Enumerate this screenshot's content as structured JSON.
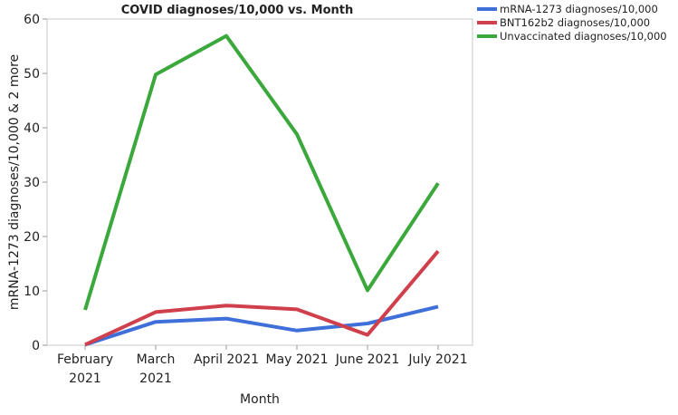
{
  "chart_data": {
    "type": "line",
    "title": "COVID diagnoses/10,000 vs. Month",
    "xlabel": "Month",
    "ylabel": "mRNA-1273 diagnoses/10,000 & 2 more",
    "categories": [
      [
        "February",
        "2021"
      ],
      [
        "March",
        "2021"
      ],
      [
        "April 2021"
      ],
      [
        "May 2021"
      ],
      [
        "June 2021"
      ],
      [
        "July 2021"
      ]
    ],
    "ylim": [
      0,
      60
    ],
    "yticks": [
      "0",
      "10",
      "20",
      "30",
      "40",
      "50",
      "60"
    ],
    "grid": false,
    "legend_position": "top-right",
    "series": [
      {
        "name": "mRNA-1273 diagnoses/10,000",
        "color": "#3f6fd8",
        "values": [
          0.1,
          4.3,
          4.9,
          2.7,
          4.0,
          7.1
        ]
      },
      {
        "name": "BNT162b2 diagnoses/10,000",
        "color": "#d0404c",
        "values": [
          0.1,
          6.1,
          7.3,
          6.6,
          1.9,
          17.3
        ]
      },
      {
        "name": "Unvaccinated diagnoses/10,000",
        "color": "#3aa83a",
        "values": [
          6.5,
          49.8,
          56.9,
          38.8,
          10.1,
          29.8
        ]
      }
    ]
  }
}
